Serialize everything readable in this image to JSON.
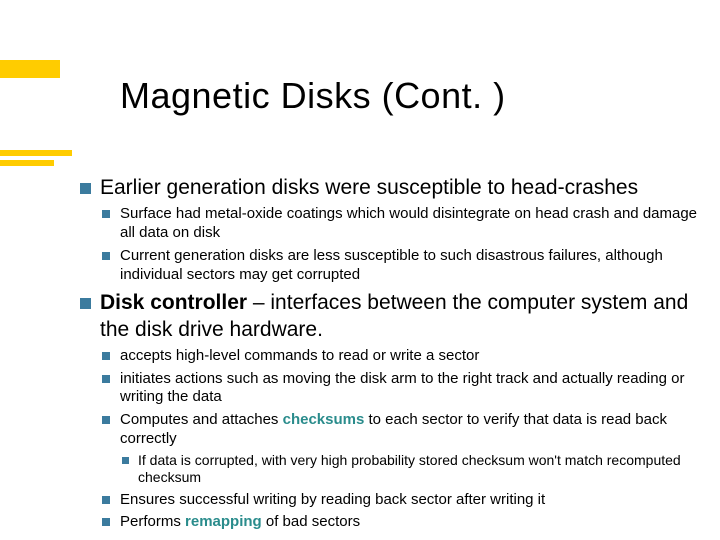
{
  "colors": {
    "accent_bar": "#ffcc00",
    "bullet": "#3b7b9e",
    "teal_highlight": "#2a8c8c",
    "background": "#ffffff",
    "text": "#000000"
  },
  "typography": {
    "title_fontsize": 36,
    "lvl1_fontsize": 21,
    "lvl2_fontsize": 15,
    "lvl3_fontsize": 14,
    "font_family": "Verdana"
  },
  "title": "Magnetic Disks (Cont. )",
  "items": [
    {
      "text": "Earlier generation disks were susceptible to head-crashes",
      "sub": [
        {
          "text": "Surface had metal-oxide coatings which would disintegrate on head crash and damage all data on disk"
        },
        {
          "text": "Current generation disks are less susceptible to such disastrous failures, although individual sectors may get corrupted"
        }
      ]
    },
    {
      "bold_lead": "Disk controller",
      "text_rest": " – interfaces between the computer system and the disk drive hardware.",
      "sub": [
        {
          "text": "accepts high-level commands to read or write a sector"
        },
        {
          "text": "initiates actions such as moving the disk arm to the right track and actually reading or writing the data"
        },
        {
          "pre": "Computes and attaches ",
          "teal": "checksums",
          "post": " to each sector to verify that data is read back correctly",
          "sub": [
            {
              "text": "If data is corrupted, with very high probability stored checksum won't match recomputed checksum"
            }
          ]
        },
        {
          "text": "Ensures successful writing by reading back sector after writing it"
        },
        {
          "pre": "Performs ",
          "teal": "remapping",
          "post": " of bad sectors"
        }
      ]
    }
  ]
}
